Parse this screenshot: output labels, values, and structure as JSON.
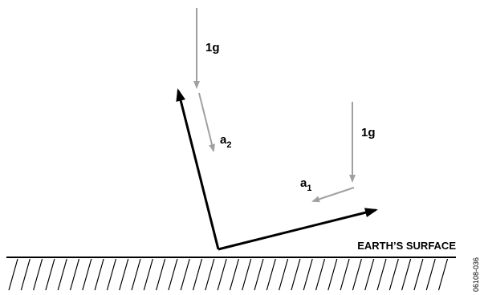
{
  "diagram": {
    "labels": {
      "gravity_top": "1g",
      "gravity_right": "1g",
      "a2_base": "a",
      "a2_sub": "2",
      "a1_base": "a",
      "a1_sub": "1",
      "surface": "EARTH’S SURFACE",
      "figure_code": "06108-036"
    },
    "colors": {
      "gravity_arrow": "#a0a0a0",
      "acceleration_arrow": "#a0a0a0",
      "axis_arrow": "#000000",
      "ground_line": "#000000",
      "background": "#ffffff"
    }
  }
}
